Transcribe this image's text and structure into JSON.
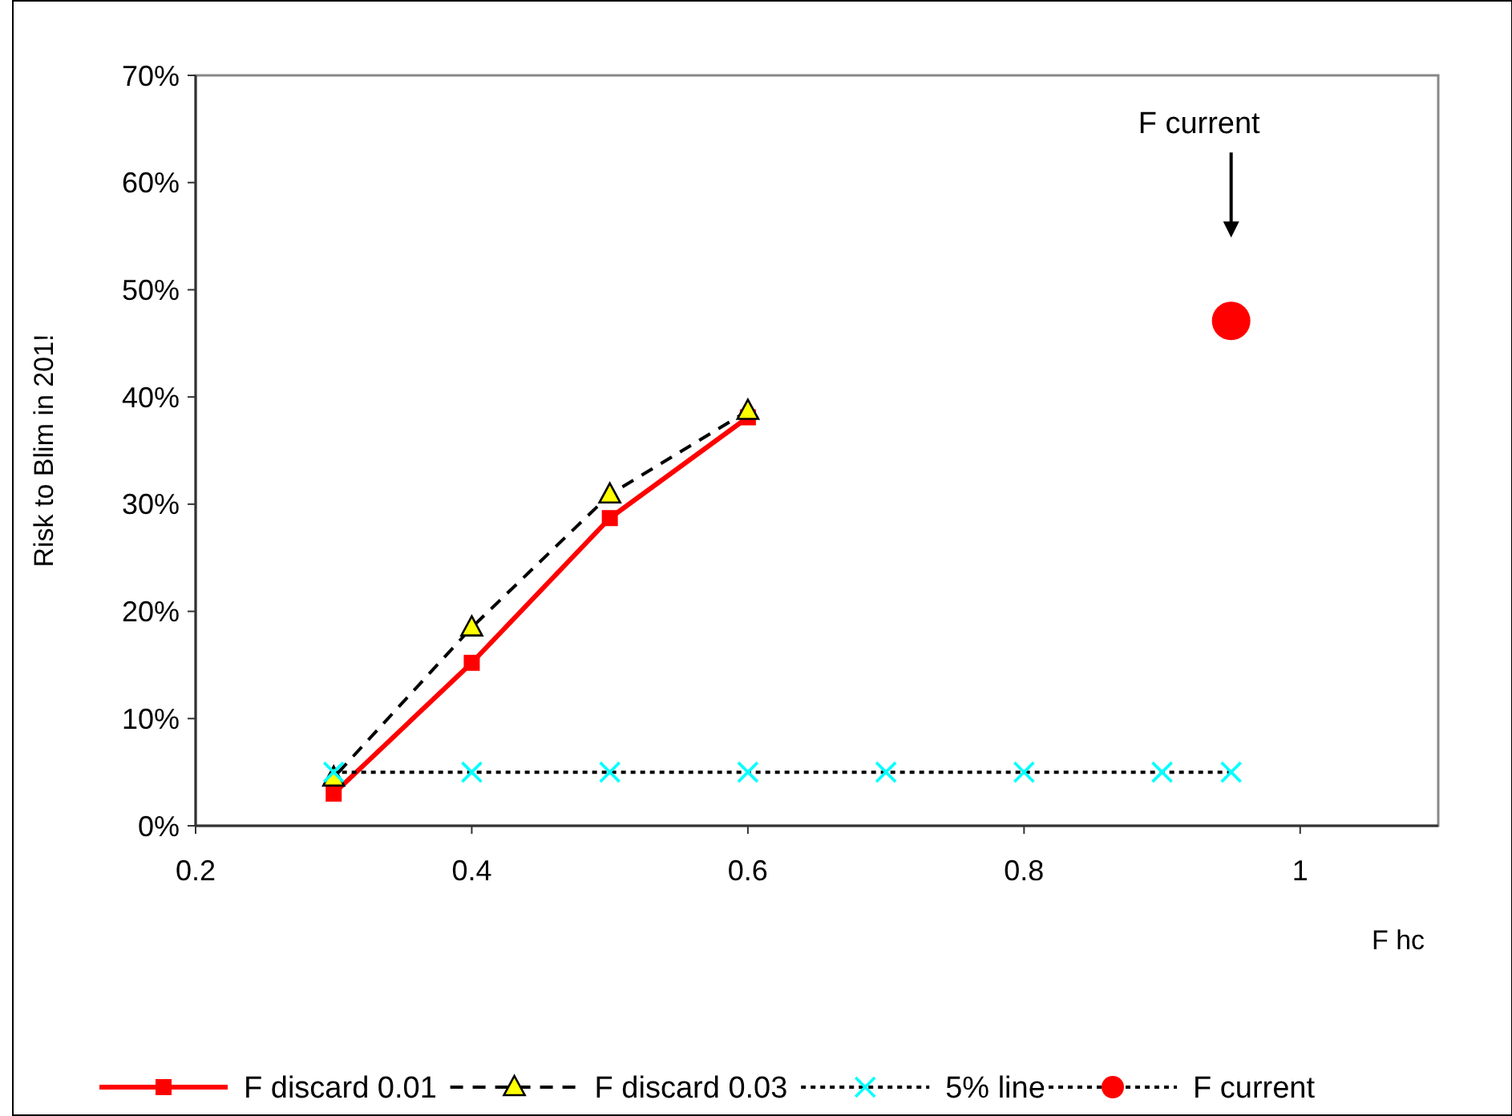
{
  "chart_data": {
    "type": "line",
    "xlabel": "F hc",
    "ylabel": "Risk to Blim in 201!",
    "xlim": [
      0.2,
      1.1
    ],
    "xticks": [
      0.2,
      0.4,
      0.6,
      0.8,
      1
    ],
    "ylim": [
      0,
      70
    ],
    "yticks": [
      {
        "value": 0,
        "label": "0%"
      },
      {
        "value": 10,
        "label": "10%"
      },
      {
        "value": 20,
        "label": "20%"
      },
      {
        "value": 30,
        "label": "30%"
      },
      {
        "value": 40,
        "label": "40%"
      },
      {
        "value": 50,
        "label": "50%"
      },
      {
        "value": 60,
        "label": "60%"
      },
      {
        "value": 70,
        "label": "70%"
      }
    ],
    "grid": false,
    "legend": "bottom",
    "series": [
      {
        "name": "F discard 0.01",
        "color": "#ff0000",
        "marker": "square",
        "line_style": "solid",
        "x": [
          0.3,
          0.4,
          0.5,
          0.6
        ],
        "values": [
          3,
          15.2,
          28.7,
          38.1
        ]
      },
      {
        "name": "F discard 0.03",
        "color": "#ffff00",
        "marker": "triangle",
        "line_style": "dashed",
        "x": [
          0.3,
          0.4,
          0.5,
          0.6
        ],
        "values": [
          4.5,
          18.5,
          30.9,
          38.7
        ]
      },
      {
        "name": "5% line",
        "color": "#00ffff",
        "marker": "cross",
        "line_style": "dotted",
        "x": [
          0.3,
          0.4,
          0.5,
          0.6,
          0.7,
          0.8,
          0.9,
          0.95
        ],
        "values": [
          5,
          5,
          5,
          5,
          5,
          5,
          5,
          5
        ]
      },
      {
        "name": "F current",
        "color": "#ff0000",
        "marker": "circle",
        "line_style": "dotted",
        "x": [
          0.95
        ],
        "values": [
          47.1
        ]
      }
    ],
    "annotations": [
      "F current"
    ]
  }
}
